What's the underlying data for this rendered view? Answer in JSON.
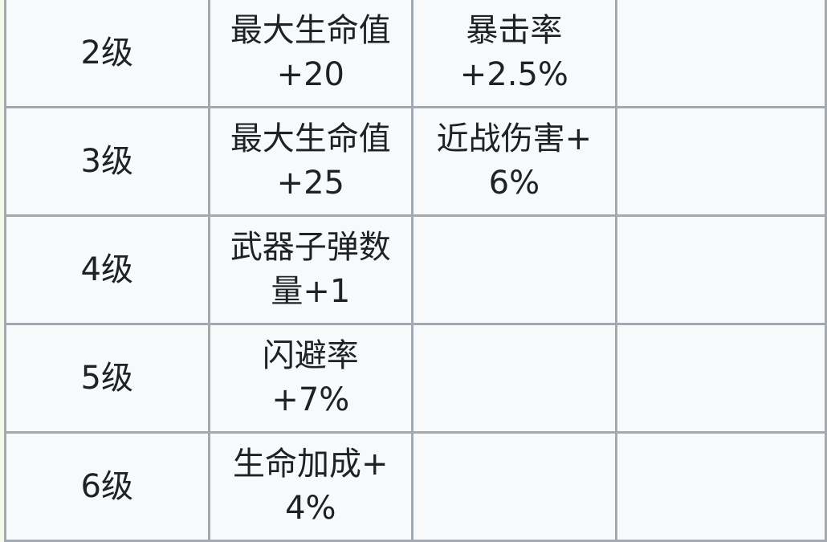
{
  "rows": [
    {
      "level": "2级",
      "c1": "最大生命值+20",
      "c2": "暴击率+2.5%",
      "c3": ""
    },
    {
      "level": "3级",
      "c1": "最大生命值+25",
      "c2": "近战伤害+6%",
      "c3": ""
    },
    {
      "level": "4级",
      "c1": "武器子弹数量+1",
      "c2": "",
      "c3": ""
    },
    {
      "level": "5级",
      "c1": "闪避率+7%",
      "c2": "",
      "c3": ""
    },
    {
      "level": "6级",
      "c1": "生命加成+4%",
      "c2": "",
      "c3": ""
    }
  ]
}
